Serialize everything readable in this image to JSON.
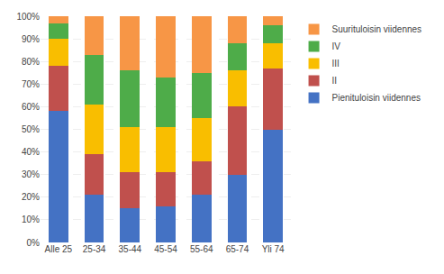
{
  "chart_data": {
    "type": "bar",
    "stacked": true,
    "categories": [
      "Alle 25",
      "25-34",
      "35-44",
      "45-54",
      "55-64",
      "65-74",
      "Yli 74"
    ],
    "series": [
      {
        "name": "Pienituloisin viidennes",
        "color": "#4472C4",
        "values": [
          58,
          21,
          15,
          16,
          21,
          30,
          50
        ]
      },
      {
        "name": "II",
        "color": "#C0504D",
        "values": [
          20,
          18,
          16,
          15,
          15,
          30,
          27
        ]
      },
      {
        "name": "III",
        "color": "#F9BE00",
        "values": [
          12,
          22,
          20,
          20,
          19,
          16,
          11
        ]
      },
      {
        "name": "IV",
        "color": "#4EAC49",
        "values": [
          7,
          22,
          25,
          22,
          20,
          12,
          8
        ]
      },
      {
        "name": "Suurituloisin viidennes",
        "color": "#F79646",
        "values": [
          3,
          17,
          24,
          27,
          25,
          12,
          4
        ]
      }
    ],
    "ylim": [
      0,
      100
    ],
    "yticks": [
      {
        "value": 0,
        "label": "0%"
      },
      {
        "value": 10,
        "label": "10%"
      },
      {
        "value": 20,
        "label": "20%"
      },
      {
        "value": 30,
        "label": "30%"
      },
      {
        "value": 40,
        "label": "40%"
      },
      {
        "value": 50,
        "label": "50%"
      },
      {
        "value": 60,
        "label": "60%"
      },
      {
        "value": 70,
        "label": "70%"
      },
      {
        "value": 80,
        "label": "80%"
      },
      {
        "value": 90,
        "label": "90%"
      },
      {
        "value": 100,
        "label": "100%"
      }
    ],
    "grid": true,
    "legend": "right"
  }
}
